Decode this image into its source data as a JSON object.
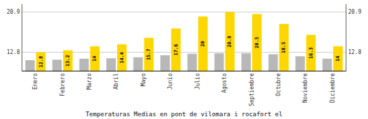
{
  "chart_data": {
    "type": "bar",
    "title": "Temperaturas Medias en pont de vilomara i rocafort el",
    "categories": [
      "Enero",
      "Febrero",
      "Marzo",
      "Abril",
      "Mayo",
      "Junio",
      "Julio",
      "Agosto",
      "Septiembre",
      "Octubre",
      "Noviembre",
      "Diciembre"
    ],
    "series": [
      {
        "color": "#B8B8B8",
        "values": [
          11.2,
          11.3,
          11.5,
          11.6,
          11.8,
          12.2,
          12.5,
          12.6,
          12.6,
          12.4,
          12.0,
          11.5
        ]
      },
      {
        "color": "#FFD700",
        "values": [
          12.8,
          13.2,
          14.0,
          14.4,
          15.7,
          17.6,
          20.0,
          20.9,
          20.5,
          18.5,
          16.3,
          14.0
        ],
        "data_labels": true
      }
    ],
    "ylim": [
      9.0,
      22.5
    ],
    "yticks": [
      12.8,
      20.9
    ],
    "grid": true
  }
}
